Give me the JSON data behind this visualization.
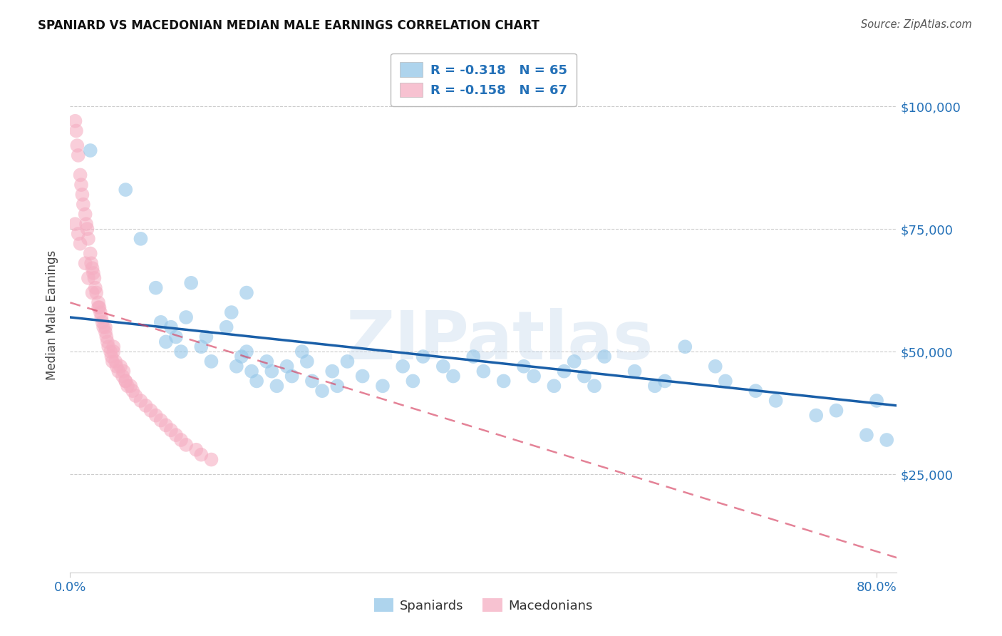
{
  "title": "SPANIARD VS MACEDONIAN MEDIAN MALE EARNINGS CORRELATION CHART",
  "source": "Source: ZipAtlas.com",
  "ylabel": "Median Male Earnings",
  "xlim": [
    0.0,
    0.82
  ],
  "ylim": [
    5000,
    110000
  ],
  "legend_blue_r": "R = -0.318",
  "legend_blue_n": "N = 65",
  "legend_pink_r": "R = -0.158",
  "legend_pink_n": "N = 67",
  "blue_color": "#93c6e8",
  "pink_color": "#f5aec2",
  "blue_line_color": "#1a5fa8",
  "pink_line_color": "#d64060",
  "background_color": "#ffffff",
  "grid_color": "#cccccc",
  "watermark": "ZIPatlas",
  "blue_scatter_x": [
    0.02,
    0.055,
    0.07,
    0.085,
    0.09,
    0.095,
    0.1,
    0.105,
    0.11,
    0.115,
    0.12,
    0.13,
    0.135,
    0.14,
    0.155,
    0.16,
    0.165,
    0.17,
    0.175,
    0.18,
    0.185,
    0.195,
    0.2,
    0.205,
    0.215,
    0.22,
    0.23,
    0.235,
    0.24,
    0.25,
    0.26,
    0.265,
    0.275,
    0.29,
    0.31,
    0.33,
    0.34,
    0.35,
    0.37,
    0.38,
    0.4,
    0.41,
    0.43,
    0.45,
    0.46,
    0.48,
    0.49,
    0.5,
    0.51,
    0.52,
    0.53,
    0.56,
    0.58,
    0.59,
    0.61,
    0.64,
    0.65,
    0.68,
    0.7,
    0.74,
    0.76,
    0.79,
    0.8,
    0.81,
    0.175
  ],
  "blue_scatter_y": [
    91000,
    83000,
    73000,
    63000,
    56000,
    52000,
    55000,
    53000,
    50000,
    57000,
    64000,
    51000,
    53000,
    48000,
    55000,
    58000,
    47000,
    49000,
    50000,
    46000,
    44000,
    48000,
    46000,
    43000,
    47000,
    45000,
    50000,
    48000,
    44000,
    42000,
    46000,
    43000,
    48000,
    45000,
    43000,
    47000,
    44000,
    49000,
    47000,
    45000,
    49000,
    46000,
    44000,
    47000,
    45000,
    43000,
    46000,
    48000,
    45000,
    43000,
    49000,
    46000,
    43000,
    44000,
    51000,
    47000,
    44000,
    42000,
    40000,
    37000,
    38000,
    33000,
    40000,
    32000,
    62000
  ],
  "pink_scatter_x": [
    0.005,
    0.006,
    0.007,
    0.008,
    0.01,
    0.011,
    0.012,
    0.013,
    0.015,
    0.016,
    0.017,
    0.018,
    0.02,
    0.021,
    0.022,
    0.023,
    0.024,
    0.025,
    0.026,
    0.028,
    0.029,
    0.03,
    0.031,
    0.032,
    0.033,
    0.035,
    0.036,
    0.037,
    0.038,
    0.04,
    0.041,
    0.042,
    0.043,
    0.045,
    0.046,
    0.048,
    0.05,
    0.052,
    0.053,
    0.055,
    0.057,
    0.06,
    0.062,
    0.065,
    0.07,
    0.075,
    0.08,
    0.085,
    0.09,
    0.095,
    0.1,
    0.105,
    0.11,
    0.115,
    0.125,
    0.13,
    0.14,
    0.005,
    0.008,
    0.01,
    0.015,
    0.018,
    0.022,
    0.028,
    0.035,
    0.043,
    0.055
  ],
  "pink_scatter_y": [
    97000,
    95000,
    92000,
    90000,
    86000,
    84000,
    82000,
    80000,
    78000,
    76000,
    75000,
    73000,
    70000,
    68000,
    67000,
    66000,
    65000,
    63000,
    62000,
    60000,
    59000,
    58000,
    57000,
    56000,
    55000,
    54000,
    53000,
    52000,
    51000,
    50000,
    49000,
    48000,
    50000,
    48000,
    47000,
    46000,
    47000,
    45000,
    46000,
    44000,
    43000,
    43000,
    42000,
    41000,
    40000,
    39000,
    38000,
    37000,
    36000,
    35000,
    34000,
    33000,
    32000,
    31000,
    30000,
    29000,
    28000,
    76000,
    74000,
    72000,
    68000,
    65000,
    62000,
    59000,
    55000,
    51000,
    44000
  ],
  "blue_line_x": [
    0.0,
    0.82
  ],
  "blue_line_y": [
    57000,
    39000
  ],
  "pink_line_x": [
    0.0,
    0.82
  ],
  "pink_line_y": [
    60000,
    8000
  ],
  "ytick_vals": [
    25000,
    50000,
    75000,
    100000
  ],
  "ytick_labels": [
    "$25,000",
    "$50,000",
    "$75,000",
    "$100,000"
  ]
}
